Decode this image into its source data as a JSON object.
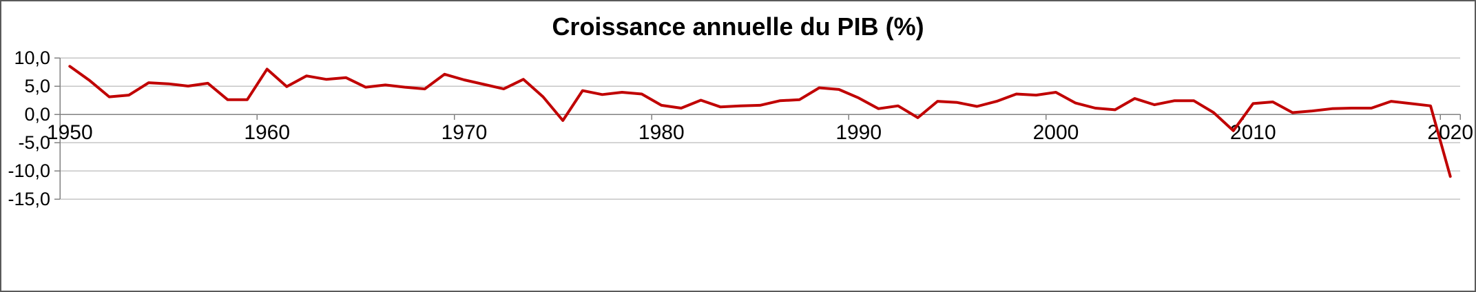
{
  "colors": {
    "line": "#C00000",
    "grid": "#C6C6C6",
    "axis": "#808080",
    "text": "#000000",
    "background": "#FFFFFF",
    "frame_border": "#595959"
  },
  "chart_data": {
    "type": "line",
    "title": "Croissance annuelle du PIB (%)",
    "xlabel": "",
    "ylabel": "",
    "ylim": [
      -15,
      10
    ],
    "grid": true,
    "legend": "none",
    "series_color": "#C00000",
    "y_ticks": [
      10,
      5,
      0,
      -5,
      -10,
      -15
    ],
    "y_tick_labels": [
      "10,0",
      "5,0",
      "0,0",
      "-5,0",
      "-10,0",
      "-15,0"
    ],
    "x_tick_labels": [
      "1950",
      "1960",
      "1970",
      "1980",
      "1990",
      "2000",
      "2010",
      "2020"
    ],
    "x": [
      1950,
      1951,
      1952,
      1953,
      1954,
      1955,
      1956,
      1957,
      1958,
      1959,
      1960,
      1961,
      1962,
      1963,
      1964,
      1965,
      1966,
      1967,
      1968,
      1969,
      1970,
      1971,
      1972,
      1973,
      1974,
      1975,
      1976,
      1977,
      1978,
      1979,
      1980,
      1981,
      1982,
      1983,
      1984,
      1985,
      1986,
      1987,
      1988,
      1989,
      1990,
      1991,
      1992,
      1993,
      1994,
      1995,
      1996,
      1997,
      1998,
      1999,
      2000,
      2001,
      2002,
      2003,
      2004,
      2005,
      2006,
      2007,
      2008,
      2009,
      2010,
      2011,
      2012,
      2013,
      2014,
      2015,
      2016,
      2017,
      2018,
      2019,
      2020
    ],
    "values": [
      8.5,
      6.0,
      3.1,
      3.4,
      5.6,
      5.4,
      5.0,
      5.5,
      2.6,
      2.6,
      8.0,
      4.9,
      6.8,
      6.2,
      6.5,
      4.8,
      5.2,
      4.8,
      4.5,
      7.1,
      6.1,
      5.3,
      4.5,
      6.2,
      3.1,
      -1.1,
      4.2,
      3.5,
      3.9,
      3.6,
      1.6,
      1.1,
      2.5,
      1.3,
      1.5,
      1.6,
      2.4,
      2.6,
      4.7,
      4.4,
      2.9,
      1.0,
      1.5,
      -0.6,
      2.3,
      2.1,
      1.4,
      2.3,
      3.6,
      3.4,
      3.9,
      2.0,
      1.1,
      0.8,
      2.8,
      1.7,
      2.4,
      2.4,
      0.3,
      -2.9,
      1.9,
      2.2,
      0.3,
      0.6,
      1.0,
      1.1,
      1.1,
      2.3,
      1.9,
      1.5,
      -11.0
    ]
  }
}
